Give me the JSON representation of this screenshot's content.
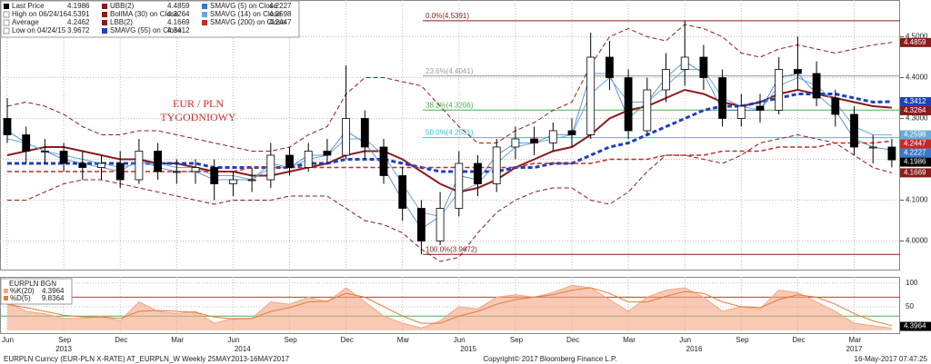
{
  "chart_data": [
    {
      "type": "candlestick",
      "annotation": [
        "EUR / PLN",
        "TYGODNIOWY"
      ],
      "categories": [
        "Jun",
        null,
        null,
        "Sep",
        null,
        null,
        "Dec",
        null,
        null,
        "Mar",
        null,
        null,
        "Jun",
        null,
        null,
        "Sep",
        null,
        null,
        "Dec",
        null,
        null,
        "Mar",
        null,
        null,
        "Jun",
        null,
        null,
        "Sep",
        null,
        null,
        "Dec",
        null,
        null,
        "Mar",
        null,
        null,
        "Jun",
        null,
        null,
        "Sep",
        null,
        null,
        "Dec",
        null,
        null,
        "Mar",
        null,
        null
      ],
      "year_labels": [
        "2013",
        "2014",
        "2015",
        "2016",
        "2017"
      ],
      "open": [
        4.3,
        4.26,
        4.22,
        4.22,
        4.19,
        4.18,
        4.19,
        4.15,
        4.22,
        4.17,
        4.17,
        4.18,
        4.14,
        4.15,
        4.15,
        4.21,
        4.18,
        4.22,
        4.21,
        4.3,
        4.23,
        4.16,
        4.08,
        4.0,
        4.08,
        4.19,
        4.14,
        4.23,
        4.25,
        4.24,
        4.27,
        4.26,
        4.45,
        4.4,
        4.27,
        4.37,
        4.42,
        4.45,
        4.4,
        4.3,
        4.33,
        4.32,
        4.42,
        4.41,
        4.35,
        4.31,
        4.23,
        4.23
      ],
      "high": [
        4.35,
        4.28,
        4.25,
        4.24,
        4.22,
        4.21,
        4.22,
        4.25,
        4.24,
        4.2,
        4.2,
        4.2,
        4.17,
        4.18,
        4.24,
        4.23,
        4.24,
        4.25,
        4.43,
        4.32,
        4.25,
        4.18,
        4.1,
        4.12,
        4.22,
        4.21,
        4.25,
        4.28,
        4.28,
        4.29,
        4.3,
        4.51,
        4.49,
        4.42,
        4.4,
        4.46,
        4.5391,
        4.48,
        4.42,
        4.36,
        4.36,
        4.45,
        4.5,
        4.44,
        4.37,
        4.33,
        4.26,
        4.25
      ],
      "low": [
        4.24,
        4.19,
        4.19,
        4.17,
        4.15,
        4.15,
        4.13,
        4.14,
        4.15,
        4.14,
        4.14,
        4.1,
        4.11,
        4.12,
        4.13,
        4.16,
        4.17,
        4.19,
        4.2,
        4.2,
        4.14,
        4.05,
        3.9672,
        3.99,
        4.06,
        4.11,
        4.12,
        4.2,
        4.21,
        4.22,
        4.23,
        4.25,
        4.37,
        4.25,
        4.26,
        4.34,
        4.38,
        4.37,
        4.28,
        4.28,
        4.29,
        4.31,
        4.37,
        4.33,
        4.28,
        4.21,
        4.19,
        4.18
      ],
      "close": [
        4.26,
        4.22,
        4.22,
        4.19,
        4.18,
        4.19,
        4.15,
        4.22,
        4.17,
        4.17,
        4.18,
        4.14,
        4.15,
        4.15,
        4.21,
        4.18,
        4.22,
        4.21,
        4.3,
        4.23,
        4.16,
        4.08,
        4.0,
        4.08,
        4.19,
        4.14,
        4.23,
        4.25,
        4.24,
        4.27,
        4.26,
        4.45,
        4.4,
        4.27,
        4.37,
        4.42,
        4.45,
        4.4,
        4.3,
        4.33,
        4.32,
        4.42,
        4.41,
        4.35,
        4.31,
        4.23,
        4.23,
        4.1986
      ],
      "stats": [
        {
          "name": "Last Price",
          "value": 4.1986,
          "color": "#000000"
        },
        {
          "name": "High on 06/24/16",
          "value": 4.5391
        },
        {
          "name": "Average",
          "value": 4.2462
        },
        {
          "name": "Low on 04/24/15",
          "value": 3.9672
        }
      ],
      "series": [
        {
          "name": "UBB(2)",
          "last": 4.4859,
          "color": "#8b1a1a",
          "dash": true,
          "values": [
            4.33,
            4.34,
            4.33,
            4.31,
            4.28,
            4.26,
            4.26,
            4.27,
            4.27,
            4.26,
            4.25,
            4.24,
            4.23,
            4.22,
            4.22,
            4.23,
            4.26,
            4.28,
            4.36,
            4.4,
            4.4,
            4.39,
            4.38,
            4.33,
            4.28,
            4.24,
            4.24,
            4.27,
            4.29,
            4.32,
            4.34,
            4.43,
            4.5,
            4.52,
            4.5,
            4.49,
            4.53,
            4.52,
            4.5,
            4.46,
            4.45,
            4.47,
            4.48,
            4.47,
            4.46,
            4.47,
            4.48,
            4.4859
          ]
        },
        {
          "name": "BollMA (30) on Close",
          "last": 4.3264,
          "color": "#8b1a1a",
          "width": 2,
          "values": [
            4.21,
            4.22,
            4.23,
            4.23,
            4.22,
            4.21,
            4.2,
            4.2,
            4.19,
            4.19,
            4.18,
            4.17,
            4.17,
            4.16,
            4.16,
            4.17,
            4.18,
            4.19,
            4.21,
            4.22,
            4.22,
            4.2,
            4.17,
            4.14,
            4.12,
            4.13,
            4.15,
            4.18,
            4.2,
            4.22,
            4.23,
            4.26,
            4.3,
            4.32,
            4.33,
            4.35,
            4.37,
            4.36,
            4.34,
            4.33,
            4.34,
            4.36,
            4.37,
            4.36,
            4.35,
            4.34,
            4.33,
            4.3264
          ]
        },
        {
          "name": "LBB(2)",
          "last": 4.1669,
          "color": "#8b1a1a",
          "dash": true,
          "values": [
            4.1,
            4.1,
            4.12,
            4.14,
            4.15,
            4.15,
            4.14,
            4.13,
            4.12,
            4.11,
            4.1,
            4.09,
            4.1,
            4.1,
            4.1,
            4.11,
            4.11,
            4.11,
            4.08,
            4.05,
            4.04,
            4.02,
            3.98,
            3.95,
            3.96,
            4.02,
            4.07,
            4.1,
            4.12,
            4.13,
            4.13,
            4.1,
            4.09,
            4.12,
            4.17,
            4.21,
            4.21,
            4.2,
            4.19,
            4.21,
            4.24,
            4.25,
            4.26,
            4.25,
            4.24,
            4.21,
            4.18,
            4.1669
          ]
        },
        {
          "name": "SMAVG (55) on Close",
          "last": 4.3412,
          "color": "#1f3fbf",
          "dash": true,
          "width": 3,
          "values": [
            4.19,
            4.19,
            4.19,
            4.19,
            4.19,
            4.19,
            4.19,
            4.19,
            4.19,
            4.19,
            4.19,
            4.18,
            4.18,
            4.18,
            4.18,
            4.18,
            4.19,
            4.19,
            4.2,
            4.2,
            4.2,
            4.19,
            4.18,
            4.17,
            4.17,
            4.17,
            4.17,
            4.18,
            4.18,
            4.19,
            4.19,
            4.21,
            4.23,
            4.24,
            4.26,
            4.28,
            4.3,
            4.32,
            4.33,
            4.33,
            4.34,
            4.35,
            4.36,
            4.36,
            4.36,
            4.35,
            4.34,
            4.3412
          ]
        },
        {
          "name": "SMAVG (5) on Close",
          "last": 4.2227,
          "color": "#3a78c8",
          "width": 0.8,
          "values": [
            4.27,
            4.24,
            4.22,
            4.2,
            4.19,
            4.18,
            4.17,
            4.2,
            4.18,
            4.17,
            4.17,
            4.15,
            4.15,
            4.15,
            4.19,
            4.18,
            4.21,
            4.21,
            4.27,
            4.24,
            4.18,
            4.1,
            4.03,
            4.06,
            4.16,
            4.15,
            4.21,
            4.24,
            4.24,
            4.26,
            4.26,
            4.41,
            4.41,
            4.3,
            4.34,
            4.4,
            4.44,
            4.41,
            4.32,
            4.32,
            4.32,
            4.4,
            4.41,
            4.36,
            4.32,
            4.25,
            4.23,
            4.2227
          ]
        },
        {
          "name": "SMAVG (14) on Close",
          "last": 4.2598,
          "color": "#6aa8d8",
          "width": 1,
          "values": [
            4.25,
            4.24,
            4.22,
            4.21,
            4.2,
            4.19,
            4.18,
            4.19,
            4.19,
            4.18,
            4.18,
            4.16,
            4.16,
            4.15,
            4.18,
            4.18,
            4.2,
            4.21,
            4.25,
            4.25,
            4.21,
            4.14,
            4.07,
            4.06,
            4.12,
            4.14,
            4.19,
            4.23,
            4.24,
            4.25,
            4.26,
            4.36,
            4.4,
            4.34,
            4.34,
            4.38,
            4.42,
            4.42,
            4.35,
            4.33,
            4.32,
            4.38,
            4.4,
            4.38,
            4.34,
            4.28,
            4.26,
            4.2598
          ]
        },
        {
          "name": "SMAVG (200) on Close",
          "last": 4.2447,
          "color": "#c62828",
          "dash": true,
          "width": 1.5,
          "values": [
            4.17,
            4.17,
            4.17,
            4.17,
            4.17,
            4.17,
            4.17,
            4.17,
            4.17,
            4.17,
            4.17,
            4.17,
            4.17,
            4.18,
            4.18,
            4.18,
            4.18,
            4.18,
            4.18,
            4.18,
            4.18,
            4.18,
            4.18,
            4.18,
            4.18,
            4.18,
            4.18,
            4.18,
            4.19,
            4.19,
            4.19,
            4.19,
            4.2,
            4.2,
            4.2,
            4.21,
            4.21,
            4.21,
            4.22,
            4.22,
            4.22,
            4.23,
            4.23,
            4.23,
            4.24,
            4.24,
            4.24,
            4.2447
          ]
        }
      ],
      "fib_levels": [
        {
          "label": "0.0%(4.5391)",
          "value": 4.5391,
          "color": "#8b1a1a"
        },
        {
          "label": "23.6%(4.4041)",
          "value": 4.4041,
          "color": "#999999"
        },
        {
          "label": "38.2%(4.3206)",
          "value": 4.3206,
          "color": "#4caf50"
        },
        {
          "label": "50.0%(4.2531)",
          "value": 4.2531,
          "color": "#26c6da"
        },
        {
          "label": "100.0%(3.9672)",
          "value": 3.9672,
          "color": "#8b1a1a"
        }
      ],
      "ylim": [
        3.93,
        4.59
      ],
      "yticks": [
        {
          "value": 4.0,
          "label": "4.0000"
        },
        {
          "value": 4.1,
          "label": "4.1000"
        },
        {
          "value": 4.2,
          "label": "4.2000"
        },
        {
          "value": 4.3,
          "label": "4.3000"
        },
        {
          "value": 4.4,
          "label": "4.4000"
        },
        {
          "value": 4.5,
          "label": "4.5000"
        }
      ],
      "grid": true
    },
    {
      "type": "line",
      "legend_title": "EURPLN BGN",
      "series": [
        {
          "name": "%K(20)",
          "last": 4.3964,
          "color": "#f4a582",
          "fill": true,
          "values": [
            60,
            40,
            35,
            25,
            25,
            30,
            20,
            60,
            40,
            35,
            40,
            15,
            25,
            25,
            60,
            55,
            70,
            60,
            90,
            60,
            30,
            15,
            5,
            20,
            50,
            45,
            70,
            75,
            70,
            80,
            95,
            90,
            65,
            40,
            70,
            85,
            90,
            70,
            40,
            50,
            45,
            85,
            80,
            60,
            40,
            15,
            10,
            4.3964
          ]
        },
        {
          "name": "%D(5)",
          "last": 9.8364,
          "color": "#e07b39",
          "values": [
            55,
            48,
            40,
            32,
            28,
            28,
            25,
            40,
            42,
            40,
            38,
            28,
            24,
            25,
            40,
            48,
            60,
            62,
            78,
            70,
            50,
            30,
            15,
            15,
            30,
            40,
            55,
            65,
            70,
            75,
            85,
            90,
            78,
            60,
            60,
            72,
            82,
            78,
            60,
            50,
            48,
            65,
            75,
            70,
            55,
            35,
            20,
            9.8364
          ]
        }
      ],
      "levels": [
        {
          "value": 70,
          "color": "#c0392b"
        },
        {
          "value": 30,
          "color": "#4caf50"
        }
      ],
      "ylim": [
        -6,
        113
      ],
      "yticks": [
        50,
        100
      ]
    }
  ],
  "footer": {
    "left": "EURPLN Curncy (EUR-PLN X-RATE) AT_EURPLN_W  Weekly 25MAY2013-16MAY2017",
    "center": "Copyright© 2017 Bloomberg Finance L.P.",
    "right": "16-May-2017 07:47:25"
  }
}
